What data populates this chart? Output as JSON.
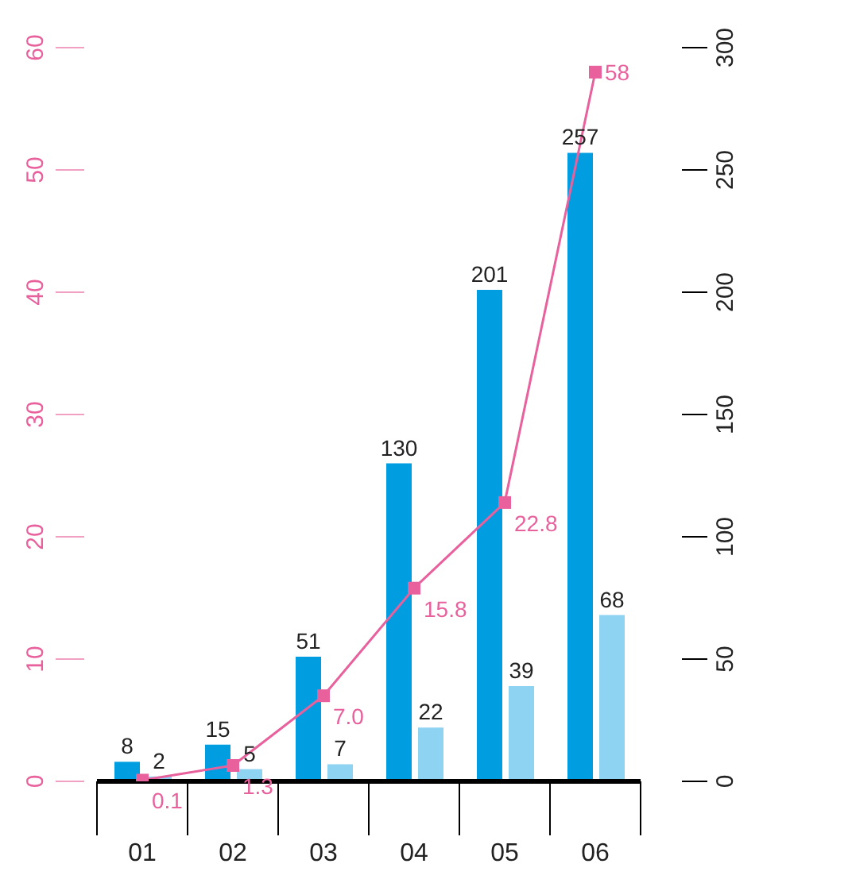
{
  "chart_data": {
    "type": "bar",
    "categories": [
      "01",
      "02",
      "03",
      "04",
      "05",
      "06"
    ],
    "series": [
      {
        "axis": "y2",
        "color": "#009ee0",
        "values": [
          8,
          15,
          51,
          130,
          201,
          257
        ]
      },
      {
        "axis": "y2",
        "color": "#8fd3f2",
        "values": [
          2,
          5,
          7,
          22,
          39,
          68
        ]
      },
      {
        "type": "line",
        "axis": "y",
        "color": "#e8609c",
        "values": [
          0.1,
          1.3,
          7.0,
          15.8,
          22.8,
          58
        ],
        "value_labels": [
          "0.1",
          "1.3",
          "7.0",
          "15.8",
          "22.8",
          "58"
        ],
        "marker": "square"
      }
    ],
    "data_labels": true,
    "ylim": [
      0,
      60
    ],
    "yticks": [
      0,
      10,
      20,
      30,
      40,
      50,
      60
    ],
    "y2lim": [
      0,
      300
    ],
    "y2ticks": [
      0,
      50,
      100,
      150,
      200,
      250,
      300
    ]
  }
}
